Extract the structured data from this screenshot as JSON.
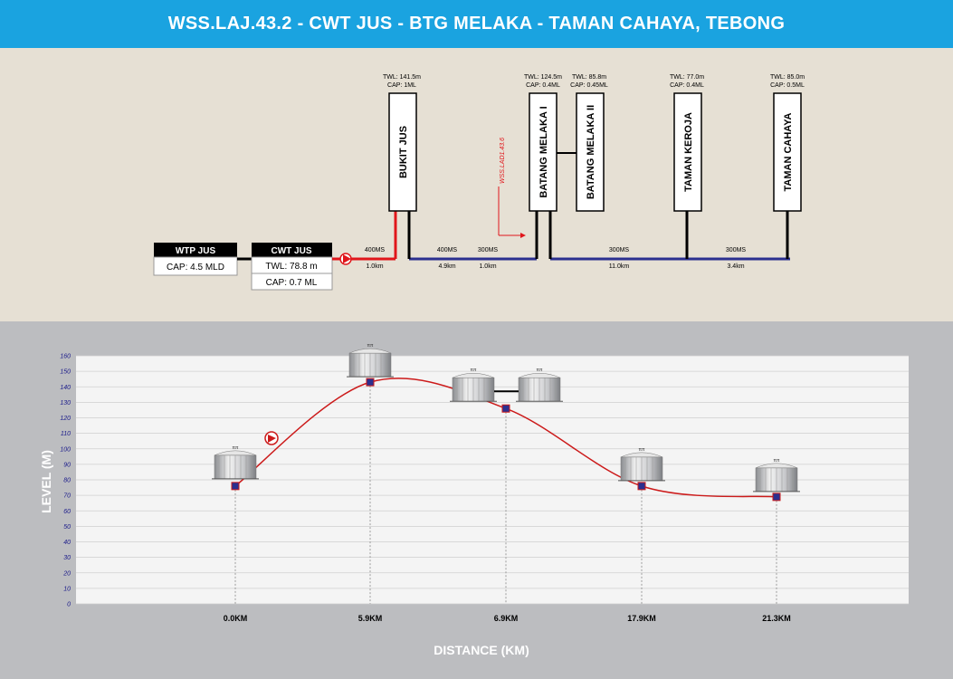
{
  "header": {
    "title": "WSS.LAJ.43.2 - CWT JUS - BTG MELAKA - TAMAN CAHAYA, TEBONG"
  },
  "schematic": {
    "wtp": {
      "name": "WTP JUS",
      "cap": "CAP: 4.5 MLD"
    },
    "cwt": {
      "name": "CWT JUS",
      "twl": "TWL: 78.8 m",
      "cap": "CAP: 0.7 ML"
    },
    "reservoirs": [
      {
        "name": "BUKIT JUS",
        "twl": "TWL: 141.5m",
        "cap": "CAP: 1ML"
      },
      {
        "name": "BATANG MELAKA I",
        "twl": "TWL: 124.5m",
        "cap": "CAP: 0.4ML"
      },
      {
        "name": "BATANG MELAKA II",
        "twl": "TWL: 85.8m",
        "cap": "CAP: 0.45ML"
      },
      {
        "name": "TAMAN KEROJA",
        "twl": "TWL: 77.0m",
        "cap": "CAP: 0.4ML"
      },
      {
        "name": "TAMAN CAHAYA",
        "twl": "TWL: 85.0m",
        "cap": "CAP: 0.5ML"
      }
    ],
    "pipes": [
      {
        "size": "400MS",
        "length": "1.0km"
      },
      {
        "size": "400MS",
        "length": "4.9km"
      },
      {
        "size": "300MS",
        "length": "1.0km"
      },
      {
        "size": "300MS",
        "length": "11.0km"
      },
      {
        "size": "300MS",
        "length": "3.4km"
      }
    ],
    "tap_label": "WSS.LAD1.43.6"
  },
  "chart_data": {
    "type": "line",
    "title": "",
    "xlabel": "DISTANCE (KM)",
    "ylabel": "LEVEL (M)",
    "ylim": [
      0,
      160
    ],
    "yticks": [
      0,
      10,
      20,
      30,
      40,
      50,
      60,
      70,
      80,
      90,
      100,
      110,
      120,
      130,
      140,
      150,
      160
    ],
    "categories": [
      "0.0KM",
      "5.9KM",
      "6.9KM",
      "17.9KM",
      "21.3KM"
    ],
    "values": [
      76,
      143,
      126,
      76,
      69
    ],
    "grid": true,
    "colors": {
      "line": "#cc1a1a",
      "marker": "#2b2f8f"
    }
  },
  "colors": {
    "header": "#1aa3e0",
    "main_pipe": "#2b2f8f",
    "pump_pipe": "#e0161b"
  }
}
